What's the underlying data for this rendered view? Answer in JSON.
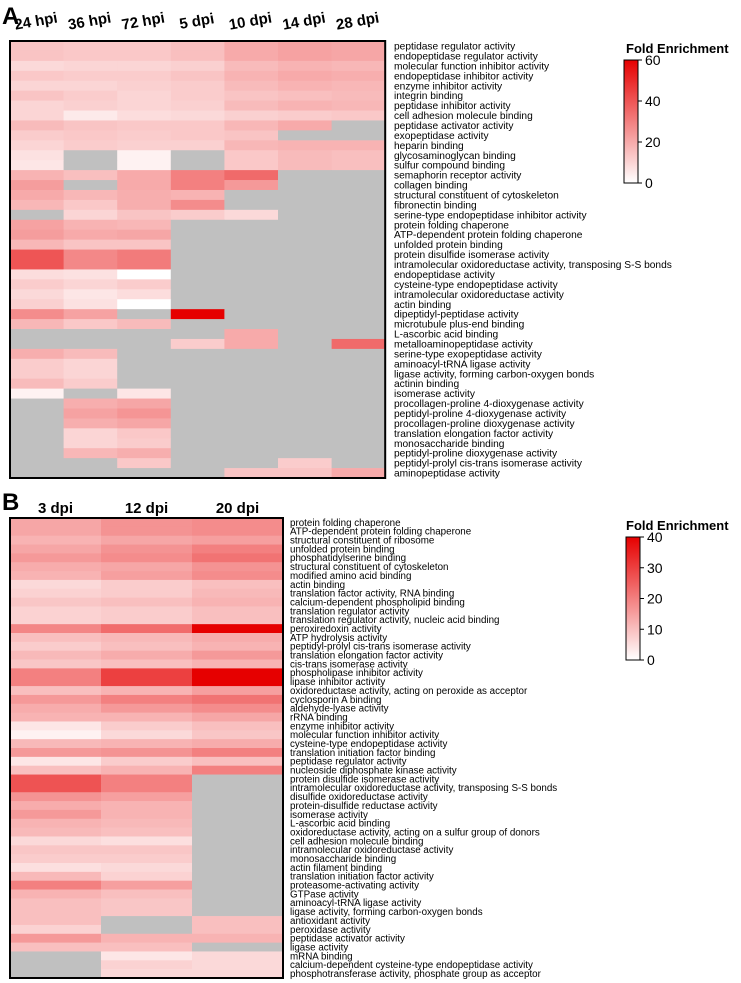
{
  "chart_data": [
    {
      "type": "heatmap",
      "panel_label": "A",
      "columns": [
        "24 hpi",
        "36 hpi",
        "72 hpi",
        "5 dpi",
        "10 dpi",
        "14 dpi",
        "28 dpi"
      ],
      "rows": [
        "peptidase regulator activity",
        "endopeptidase regulator activity",
        "molecular function inhibitor activity",
        "endopeptidase inhibitor activity",
        "enzyme inhibitor activity",
        "integrin binding",
        "peptidase inhibitor activity",
        "cell adhesion molecule binding",
        "peptidase activator activity",
        "exopeptidase activity",
        "heparin binding",
        "glycosaminoglycan binding",
        "sulfur compound binding",
        "semaphorin receptor activity",
        "collagen binding",
        "structural constituent of cytoskeleton",
        "fibronectin binding",
        "serine-type endopeptidase inhibitor activity",
        "protein folding chaperone",
        "ATP-dependent protein folding chaperone",
        "unfolded protein binding",
        "protein disulfide isomerase activity",
        "intramolecular oxidoreductase activity, transposing S-S bonds",
        "endopeptidase activity",
        "cysteine-type endopeptidase activity",
        "intramolecular oxidoreductase activity",
        "actin binding",
        "dipeptidyl-peptidase activity",
        "microtubule plus-end binding",
        "L-ascorbic acid binding",
        "metalloaminopeptidase activity",
        "serine-type exopeptidase activity",
        "aminoacyl-tRNA ligase activity",
        "ligase activity, forming carbon-oxygen bonds",
        "actinin binding",
        "isomerase activity",
        "procollagen-proline 4-dioxygenase activity",
        "peptidyl-proline 4-dioxygenase activity",
        "procollagen-proline dioxygenase activity",
        "translation elongation factor activity",
        "monosaccharide binding",
        "peptidyl-proline dioxygenase activity",
        "peptidyl-prolyl cis-trans isomerase activity",
        "aminopeptidase activity"
      ],
      "values": [
        [
          14,
          13,
          13,
          15,
          20,
          22,
          21
        ],
        [
          14,
          13,
          13,
          15,
          20,
          22,
          21
        ],
        [
          9,
          10,
          10,
          11,
          16,
          18,
          17
        ],
        [
          13,
          12,
          12,
          14,
          18,
          20,
          19
        ],
        [
          10,
          10,
          11,
          12,
          16,
          18,
          17
        ],
        [
          14,
          12,
          10,
          12,
          14,
          15,
          16
        ],
        [
          10,
          11,
          10,
          11,
          16,
          18,
          17
        ],
        [
          10,
          5,
          8,
          9,
          11,
          12,
          13
        ],
        [
          16,
          14,
          13,
          13,
          17,
          20,
          null
        ],
        [
          12,
          13,
          12,
          13,
          14,
          null,
          null
        ],
        [
          10,
          12,
          11,
          11,
          17,
          18,
          18
        ],
        [
          7,
          null,
          3,
          null,
          13,
          16,
          15
        ],
        [
          6,
          null,
          3,
          null,
          13,
          16,
          15
        ],
        [
          18,
          15,
          20,
          30,
          35,
          null,
          null
        ],
        [
          23,
          null,
          20,
          30,
          24,
          null,
          null
        ],
        [
          20,
          17,
          19,
          18,
          null,
          null,
          null
        ],
        [
          17,
          13,
          19,
          27,
          null,
          null,
          null
        ],
        [
          null,
          10,
          14,
          12,
          9,
          null,
          null
        ],
        [
          22,
          18,
          17,
          null,
          null,
          null,
          null
        ],
        [
          23,
          20,
          21,
          null,
          null,
          null,
          null
        ],
        [
          17,
          14,
          14,
          null,
          null,
          null,
          null
        ],
        [
          40,
          28,
          31,
          null,
          null,
          null,
          null
        ],
        [
          40,
          28,
          31,
          null,
          null,
          null,
          null
        ],
        [
          8,
          7,
          0,
          null,
          null,
          null,
          null
        ],
        [
          12,
          10,
          12,
          null,
          null,
          null,
          null
        ],
        [
          9,
          6,
          8,
          null,
          null,
          null,
          null
        ],
        [
          11,
          7,
          0,
          null,
          null,
          null,
          null
        ],
        [
          27,
          22,
          null,
          60,
          null,
          null,
          null
        ],
        [
          17,
          13,
          16,
          null,
          null,
          null,
          null
        ],
        [
          null,
          null,
          null,
          null,
          20,
          null,
          null
        ],
        [
          null,
          null,
          null,
          12,
          20,
          null,
          35
        ],
        [
          19,
          16,
          null,
          null,
          null,
          null,
          null
        ],
        [
          12,
          10,
          null,
          null,
          null,
          null,
          null
        ],
        [
          12,
          10,
          null,
          null,
          null,
          null,
          null
        ],
        [
          16,
          12,
          null,
          null,
          null,
          null,
          null
        ],
        [
          3,
          null,
          6,
          null,
          null,
          null,
          null
        ],
        [
          null,
          19,
          21,
          null,
          null,
          null,
          null
        ],
        [
          null,
          22,
          25,
          null,
          null,
          null,
          null
        ],
        [
          null,
          19,
          21,
          null,
          null,
          null,
          null
        ],
        [
          null,
          10,
          13,
          null,
          null,
          null,
          null
        ],
        [
          null,
          10,
          12,
          null,
          null,
          null,
          null
        ],
        [
          null,
          17,
          19,
          null,
          null,
          null,
          null
        ],
        [
          null,
          null,
          13,
          null,
          null,
          12,
          null
        ],
        [
          null,
          null,
          null,
          null,
          14,
          14,
          20
        ]
      ],
      "legend": {
        "title": "Fold Enrichment",
        "ticks": [
          0,
          20,
          40,
          60
        ],
        "min": 0,
        "max": 60
      },
      "missing_color": "#c0c0c0",
      "low_color": "#ffffff",
      "high_color": "#e60000"
    },
    {
      "type": "heatmap",
      "panel_label": "B",
      "columns": [
        "3 dpi",
        "12 dpi",
        "20 dpi"
      ],
      "rows": [
        "protein folding chaperone",
        "ATP-dependent protein folding chaperone",
        "structural constituent of ribosome",
        "unfolded protein binding",
        "phosphatidylserine binding",
        "structural constituent of cytoskeleton",
        "modified amino acid binding",
        "actin binding",
        "translation factor activity, RNA binding",
        "calcium-dependent phospholipid binding",
        "translation regulator activity",
        "translation regulator activity, nucleic acid binding",
        "peroxiredoxin activity",
        "ATP hydrolysis activity",
        "peptidyl-prolyl cis-trans isomerase activity",
        "translation elongation factor activity",
        "cis-trans isomerase activity",
        "phospholipase inhibitor activity",
        "lipase inhibitor activity",
        "oxidoreductase activity, acting on peroxide as acceptor",
        "cyclosporin A binding",
        "aldehyde-lyase activity",
        "rRNA binding",
        "enzyme inhibitor activity",
        "molecular function inhibitor activity",
        "cysteine-type endopeptidase activity",
        "translation initiation factor binding",
        "peptidase regulator activity",
        "nucleoside diphosphate kinase activity",
        "protein disulfide isomerase activity",
        "intramolecular oxidoreductase activity, transposing S-S bonds",
        "disulfide oxidoreductase activity",
        "protein-disulfide reductase activity",
        "isomerase activity",
        "L-ascorbic acid binding",
        "oxidoreductase activity, acting on a sulfur group of donors",
        "cell adhesion molecule binding",
        "intramolecular oxidoreductase activity",
        "monosaccharide binding",
        "actin filament binding",
        "translation initiation factor activity",
        "proteasome-activating activity",
        "GTPase activity",
        "aminoacyl-tRNA ligase activity",
        "ligase activity, forming carbon-oxygen bonds",
        "antioxidant activity",
        "peroxidase activity",
        "peptidase activator activity",
        "ligase activity",
        "mRNA binding",
        "calcium-dependent cysteine-type endopeptidase activity",
        "phosphotransferase activity, phosphate group as acceptor"
      ],
      "values": [
        [
          14,
          17,
          18
        ],
        [
          14,
          17,
          18
        ],
        [
          12,
          14,
          15
        ],
        [
          14,
          17,
          20
        ],
        [
          16,
          18,
          22
        ],
        [
          13,
          14,
          17
        ],
        [
          12,
          15,
          18
        ],
        [
          6,
          8,
          10
        ],
        [
          7,
          8,
          11
        ],
        [
          9,
          10,
          12
        ],
        [
          7,
          8,
          10
        ],
        [
          7,
          8,
          10
        ],
        [
          19,
          23,
          40
        ],
        [
          10,
          11,
          13
        ],
        [
          8,
          10,
          12
        ],
        [
          11,
          13,
          16
        ],
        [
          9,
          10,
          12
        ],
        [
          20,
          30,
          40
        ],
        [
          20,
          30,
          40
        ],
        [
          10,
          12,
          15
        ],
        [
          16,
          20,
          22
        ],
        [
          13,
          16,
          18
        ],
        [
          12,
          12,
          14
        ],
        [
          4,
          8,
          10
        ],
        [
          2,
          6,
          9
        ],
        [
          11,
          12,
          13
        ],
        [
          16,
          17,
          20
        ],
        [
          4,
          8,
          10
        ],
        [
          10,
          12,
          20
        ],
        [
          27,
          20,
          null
        ],
        [
          27,
          20,
          null
        ],
        [
          17,
          15,
          null
        ],
        [
          13,
          12,
          null
        ],
        [
          16,
          12,
          null
        ],
        [
          12,
          11,
          null
        ],
        [
          11,
          10,
          null
        ],
        [
          6,
          5,
          null
        ],
        [
          9,
          9,
          null
        ],
        [
          8,
          8,
          null
        ],
        [
          5,
          6,
          null
        ],
        [
          11,
          7,
          null
        ],
        [
          20,
          15,
          null
        ],
        [
          12,
          10,
          null
        ],
        [
          10,
          9,
          null
        ],
        [
          10,
          9,
          null
        ],
        [
          10,
          null,
          10
        ],
        [
          7,
          null,
          10
        ],
        [
          16,
          12,
          12
        ],
        [
          10,
          10,
          null
        ],
        [
          null,
          4,
          6
        ],
        [
          null,
          7,
          6
        ],
        [
          null,
          6,
          6
        ]
      ],
      "legend": {
        "title": "Fold Enrichment",
        "ticks": [
          0,
          10,
          20,
          30,
          40
        ],
        "min": 0,
        "max": 40
      },
      "missing_color": "#c0c0c0",
      "low_color": "#ffffff",
      "high_color": "#e60000"
    }
  ]
}
